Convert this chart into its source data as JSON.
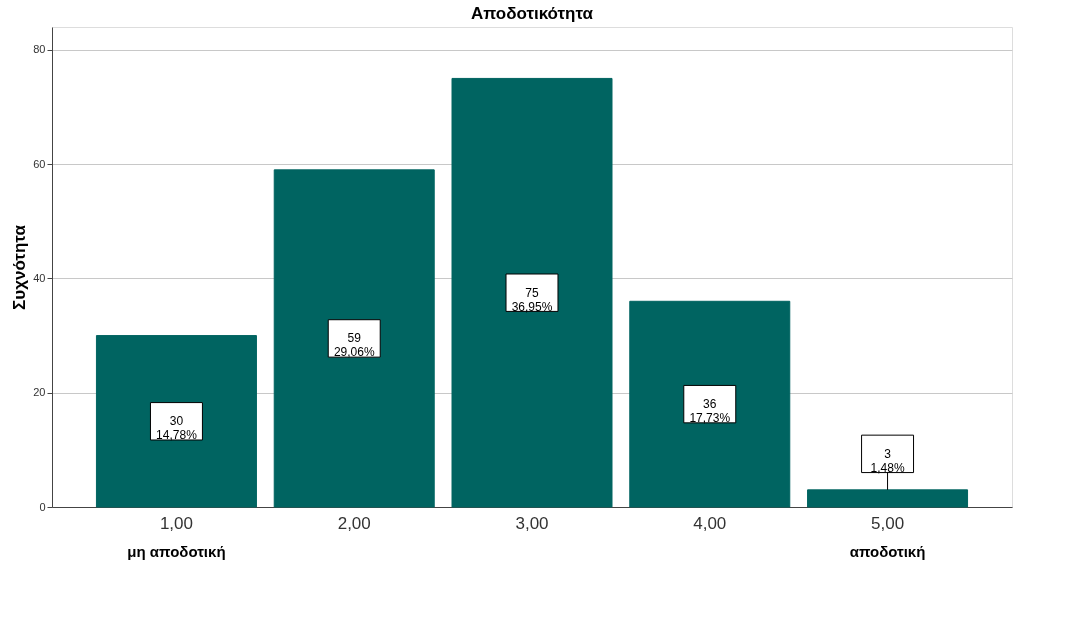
{
  "chart_data": {
    "type": "bar",
    "title": "Αποδοτικότητα",
    "ylabel": "Συχνότητα",
    "categories": [
      "1,00",
      "2,00",
      "3,00",
      "4,00",
      "5,00"
    ],
    "values": [
      30,
      59,
      75,
      36,
      3
    ],
    "value_labels": [
      "30\n14,78%",
      "59\n29,06%",
      "75\n36,95%",
      "36\n17,73%",
      "3\n1,48%"
    ],
    "color": "#006461",
    "ylim": [
      0,
      84
    ],
    "yticks": [
      0,
      20,
      40,
      60,
      80
    ],
    "grid": "y",
    "annotations": [
      "μη αποδοτική",
      "αποδοτική"
    ]
  }
}
